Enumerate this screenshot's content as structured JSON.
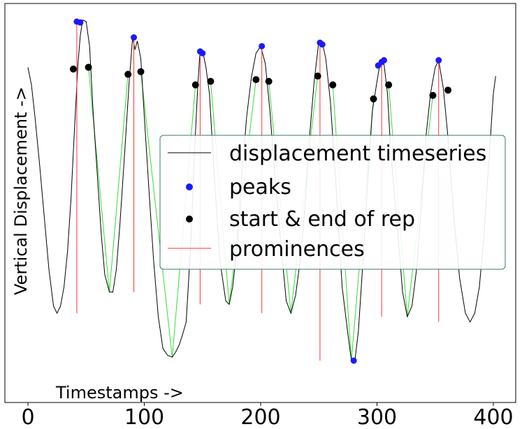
{
  "chart_data": {
    "type": "line",
    "xlabel": "Timestamps ->",
    "ylabel": "Vertical Displacement ->",
    "xlim": [
      -3,
      406
    ],
    "ylim": [
      -1.08,
      1.0
    ],
    "xticks": [
      0,
      100,
      200,
      300,
      400
    ],
    "xtick_labels": [
      "0",
      "100",
      "200",
      "300",
      "400"
    ],
    "yticks": [],
    "grid": false,
    "legend_position": "center-right",
    "legend": [
      {
        "label": "displacement timeseries",
        "key": "line",
        "color": "#000000"
      },
      {
        "label": "peaks",
        "key": "dot",
        "color": "#1a1aff"
      },
      {
        "label": "start & end of rep",
        "key": "dot",
        "color": "#000000"
      },
      {
        "label": "prominences",
        "key": "line",
        "color": "#ff3333"
      }
    ],
    "series": [
      {
        "name": "displacement timeseries",
        "color": "#000000",
        "points": [
          [
            0,
            0.7
          ],
          [
            3,
            0.6
          ],
          [
            6,
            0.42
          ],
          [
            10,
            0.15
          ],
          [
            14,
            -0.15
          ],
          [
            18,
            -0.45
          ],
          [
            22,
            -0.66
          ],
          [
            25,
            -0.7
          ],
          [
            28,
            -0.66
          ],
          [
            31,
            -0.55
          ],
          [
            34,
            -0.35
          ],
          [
            37,
            -0.05
          ],
          [
            40,
            0.35
          ],
          [
            43,
            0.72
          ],
          [
            45,
            0.88
          ],
          [
            47,
            0.97
          ],
          [
            50,
            0.96
          ],
          [
            53,
            0.82
          ],
          [
            56,
            0.45
          ],
          [
            60,
            0.05
          ],
          [
            63,
            -0.25
          ],
          [
            66,
            -0.48
          ],
          [
            70,
            -0.58
          ],
          [
            73,
            -0.58
          ],
          [
            76,
            -0.45
          ],
          [
            79,
            -0.2
          ],
          [
            83,
            0.2
          ],
          [
            87,
            0.62
          ],
          [
            90,
            0.87
          ],
          [
            92,
            0.8
          ],
          [
            94,
            0.85
          ],
          [
            97,
            0.75
          ],
          [
            100,
            0.42
          ],
          [
            104,
            0.0
          ],
          [
            108,
            -0.4
          ],
          [
            112,
            -0.72
          ],
          [
            116,
            -0.9
          ],
          [
            120,
            -0.94
          ],
          [
            124,
            -0.95
          ],
          [
            127,
            -0.92
          ],
          [
            130,
            -0.88
          ],
          [
            133,
            -0.82
          ],
          [
            136,
            -0.75
          ],
          [
            140,
            -0.3
          ],
          [
            143,
            0.2
          ],
          [
            146,
            0.6
          ],
          [
            148,
            0.8
          ],
          [
            150,
            0.8
          ],
          [
            153,
            0.7
          ],
          [
            156,
            0.55
          ],
          [
            160,
            0.1
          ],
          [
            165,
            -0.4
          ],
          [
            170,
            -0.63
          ],
          [
            173,
            -0.65
          ],
          [
            176,
            -0.55
          ],
          [
            180,
            -0.3
          ],
          [
            184,
            0.1
          ],
          [
            188,
            0.42
          ],
          [
            192,
            0.64
          ],
          [
            196,
            0.78
          ],
          [
            200,
            0.82
          ],
          [
            204,
            0.72
          ],
          [
            208,
            0.45
          ],
          [
            212,
            0.1
          ],
          [
            218,
            -0.35
          ],
          [
            222,
            -0.63
          ],
          [
            226,
            -0.7
          ],
          [
            230,
            -0.6
          ],
          [
            234,
            -0.4
          ],
          [
            238,
            -0.1
          ],
          [
            242,
            0.3
          ],
          [
            246,
            0.62
          ],
          [
            250,
            0.85
          ],
          [
            253,
            0.84
          ],
          [
            256,
            0.75
          ],
          [
            260,
            0.5
          ],
          [
            265,
            0.0
          ],
          [
            270,
            -0.55
          ],
          [
            275,
            -0.82
          ],
          [
            278,
            -0.97
          ],
          [
            281,
            -0.97
          ],
          [
            284,
            -0.8
          ],
          [
            288,
            -0.4
          ],
          [
            292,
            0.05
          ],
          [
            296,
            0.45
          ],
          [
            300,
            0.62
          ],
          [
            303,
            0.74
          ],
          [
            306,
            0.72
          ],
          [
            309,
            0.55
          ],
          [
            312,
            0.2
          ],
          [
            318,
            -0.25
          ],
          [
            322,
            -0.58
          ],
          [
            326,
            -0.72
          ],
          [
            330,
            -0.66
          ],
          [
            334,
            -0.45
          ],
          [
            338,
            -0.1
          ],
          [
            342,
            0.3
          ],
          [
            346,
            0.55
          ],
          [
            350,
            0.7
          ],
          [
            353,
            0.74
          ],
          [
            357,
            0.58
          ],
          [
            361,
            0.3
          ],
          [
            366,
            -0.15
          ],
          [
            371,
            -0.5
          ],
          [
            376,
            -0.7
          ],
          [
            380,
            -0.75
          ],
          [
            384,
            -0.7
          ],
          [
            388,
            -0.55
          ],
          [
            392,
            -0.25
          ],
          [
            396,
            0.15
          ],
          [
            400,
            0.55
          ],
          [
            402,
            0.65
          ]
        ]
      },
      {
        "name": "peaks",
        "color": "#1a1aff",
        "points": [
          [
            42,
            0.96
          ],
          [
            45,
            0.955
          ],
          [
            91,
            0.87
          ],
          [
            148,
            0.79
          ],
          [
            150,
            0.78
          ],
          [
            201,
            0.82
          ],
          [
            251,
            0.84
          ],
          [
            253,
            0.83
          ],
          [
            280,
            -0.97
          ],
          [
            301,
            0.71
          ],
          [
            304,
            0.73
          ],
          [
            306,
            0.74
          ],
          [
            353,
            0.74
          ]
        ]
      },
      {
        "name": "start & end of rep",
        "color": "#000000",
        "points": [
          [
            39,
            0.69
          ],
          [
            52,
            0.7
          ],
          [
            86,
            0.66
          ],
          [
            97,
            0.675
          ],
          [
            144,
            0.6
          ],
          [
            157,
            0.62
          ],
          [
            196,
            0.63
          ],
          [
            207,
            0.62
          ],
          [
            249,
            0.65
          ],
          [
            262,
            0.6
          ],
          [
            297,
            0.52
          ],
          [
            310,
            0.6
          ],
          [
            348,
            0.54
          ],
          [
            361,
            0.57
          ]
        ]
      },
      {
        "name": "prominences",
        "color": "#ff3333",
        "segments": [
          [
            42,
            0.96,
            -0.7
          ],
          [
            91,
            0.87,
            -0.58
          ],
          [
            148,
            0.79,
            -0.65
          ],
          [
            201,
            0.82,
            -0.7
          ],
          [
            251,
            0.84,
            -0.97
          ],
          [
            304,
            0.73,
            -0.72
          ],
          [
            353,
            0.74,
            -0.75
          ]
        ]
      }
    ]
  }
}
